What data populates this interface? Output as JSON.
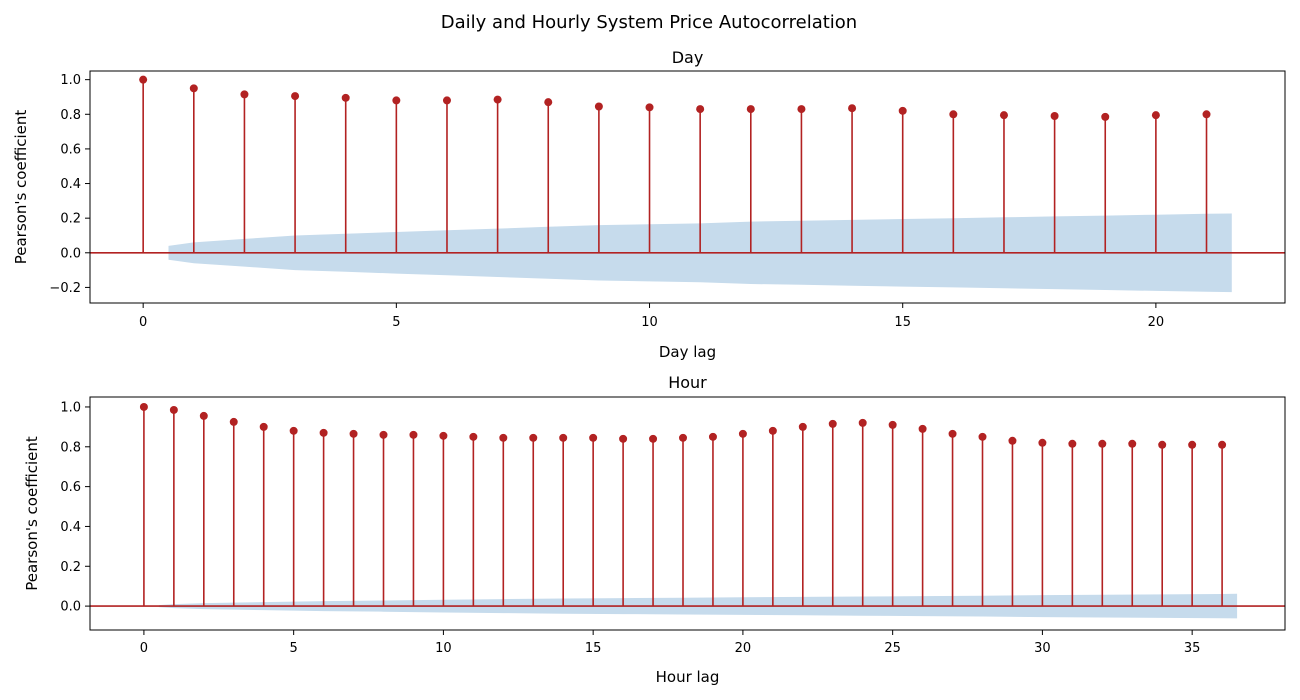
{
  "figure_title": "Daily and Hourly System Price Autocorrelation",
  "colors": {
    "stem": "#b22222",
    "confidence_band": "#c6dbec",
    "zero_line": "#b22222",
    "axes": "#000000"
  },
  "chart_data": [
    {
      "type": "stem",
      "title": "Day",
      "xlabel": "Day lag",
      "ylabel": "Pearson's coefficient",
      "xlim": [
        -1.05,
        22.55
      ],
      "ylim": [
        -0.29,
        1.05
      ],
      "xticks": [
        0,
        5,
        10,
        15,
        20
      ],
      "yticks": [
        -0.2,
        0.0,
        0.2,
        0.4,
        0.6,
        0.8,
        1.0
      ],
      "x": [
        0,
        1,
        2,
        3,
        4,
        5,
        6,
        7,
        8,
        9,
        10,
        11,
        12,
        13,
        14,
        15,
        16,
        17,
        18,
        19,
        20,
        21
      ],
      "values": [
        1.0,
        0.95,
        0.915,
        0.905,
        0.895,
        0.88,
        0.88,
        0.885,
        0.87,
        0.845,
        0.84,
        0.83,
        0.83,
        0.83,
        0.835,
        0.82,
        0.8,
        0.795,
        0.79,
        0.785,
        0.795,
        0.8
      ],
      "confidence_band": {
        "x": [
          0.5,
          1,
          2,
          3,
          4,
          5,
          6,
          7,
          8,
          9,
          10,
          11,
          12,
          13,
          14,
          15,
          16,
          17,
          18,
          19,
          20,
          21,
          21.5
        ],
        "upper": [
          0.04,
          0.06,
          0.08,
          0.1,
          0.11,
          0.12,
          0.13,
          0.14,
          0.15,
          0.16,
          0.165,
          0.17,
          0.18,
          0.185,
          0.19,
          0.195,
          0.2,
          0.205,
          0.21,
          0.215,
          0.22,
          0.225,
          0.227
        ],
        "lower": [
          -0.04,
          -0.06,
          -0.08,
          -0.1,
          -0.11,
          -0.12,
          -0.13,
          -0.14,
          -0.15,
          -0.16,
          -0.165,
          -0.17,
          -0.18,
          -0.185,
          -0.19,
          -0.195,
          -0.2,
          -0.205,
          -0.21,
          -0.215,
          -0.22,
          -0.225,
          -0.227
        ]
      },
      "grid": false
    },
    {
      "type": "stem",
      "title": "Hour",
      "xlabel": "Hour lag",
      "ylabel": "Pearson's coefficient",
      "xlim": [
        -1.8,
        38.1
      ],
      "ylim": [
        -0.12,
        1.05
      ],
      "xticks": [
        0,
        5,
        10,
        15,
        20,
        25,
        30,
        35
      ],
      "yticks": [
        0.0,
        0.2,
        0.4,
        0.6,
        0.8,
        1.0
      ],
      "x": [
        0,
        1,
        2,
        3,
        4,
        5,
        6,
        7,
        8,
        9,
        10,
        11,
        12,
        13,
        14,
        15,
        16,
        17,
        18,
        19,
        20,
        21,
        22,
        23,
        24,
        25,
        26,
        27,
        28,
        29,
        30,
        31,
        32,
        33,
        34,
        35,
        36
      ],
      "values": [
        1.0,
        0.985,
        0.955,
        0.925,
        0.9,
        0.88,
        0.87,
        0.865,
        0.86,
        0.86,
        0.855,
        0.85,
        0.845,
        0.845,
        0.845,
        0.845,
        0.84,
        0.84,
        0.845,
        0.85,
        0.865,
        0.88,
        0.9,
        0.915,
        0.92,
        0.91,
        0.89,
        0.865,
        0.85,
        0.83,
        0.82,
        0.815,
        0.815,
        0.815,
        0.81,
        0.81,
        0.81
      ],
      "confidence_band": {
        "x": [
          0.5,
          1,
          2,
          4,
          6,
          8,
          10,
          12,
          14,
          16,
          18,
          20,
          22,
          24,
          26,
          28,
          30,
          32,
          34,
          36,
          36.5
        ],
        "upper": [
          0.005,
          0.01,
          0.015,
          0.02,
          0.025,
          0.028,
          0.032,
          0.035,
          0.038,
          0.04,
          0.042,
          0.044,
          0.046,
          0.048,
          0.05,
          0.052,
          0.055,
          0.057,
          0.059,
          0.061,
          0.062
        ],
        "lower": [
          -0.005,
          -0.01,
          -0.015,
          -0.02,
          -0.025,
          -0.028,
          -0.032,
          -0.035,
          -0.038,
          -0.04,
          -0.042,
          -0.044,
          -0.046,
          -0.048,
          -0.05,
          -0.052,
          -0.055,
          -0.057,
          -0.059,
          -0.061,
          -0.062
        ]
      },
      "grid": false
    }
  ]
}
